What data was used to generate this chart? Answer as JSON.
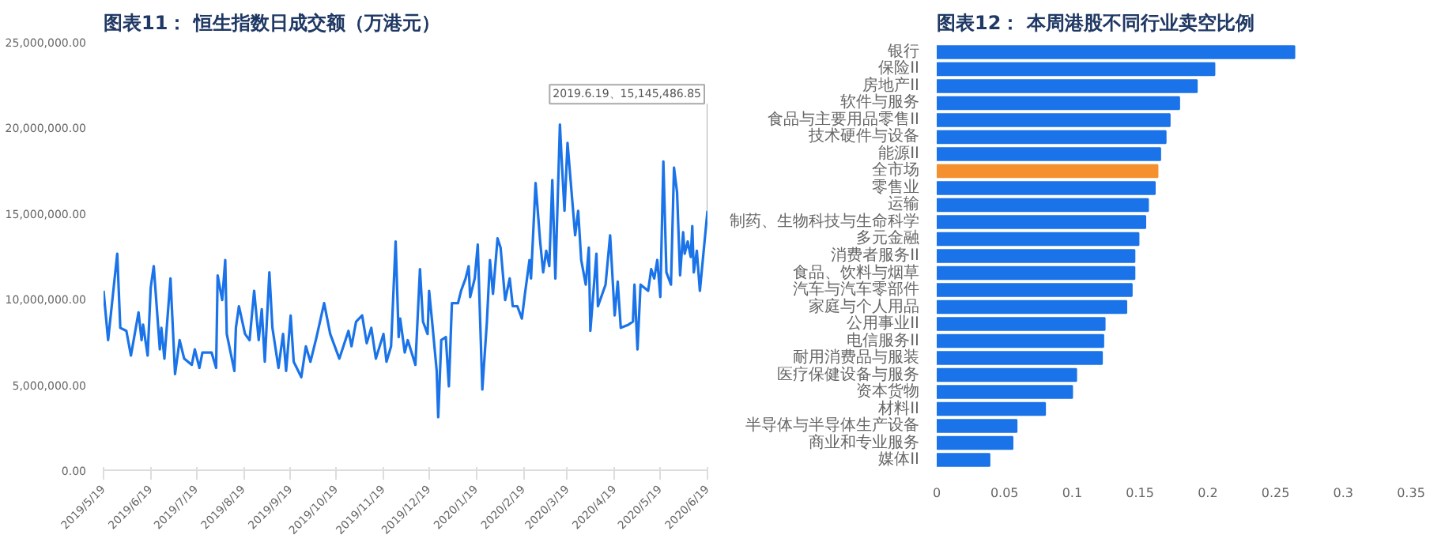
{
  "chart_data": [
    {
      "type": "line",
      "title": "图表11：  恒生指数日成交额（万港元）",
      "x": [
        "2019-05-19",
        "2019-05-22",
        "2019-05-28",
        "2019-05-30",
        "2019-06-03",
        "2019-06-06",
        "2019-06-11",
        "2019-06-13",
        "2019-06-14",
        "2019-06-17",
        "2019-06-19",
        "2019-06-21",
        "2019-06-25",
        "2019-06-26",
        "2019-06-28",
        "2019-07-02",
        "2019-07-05",
        "2019-07-08",
        "2019-07-11",
        "2019-07-16",
        "2019-07-18",
        "2019-07-21",
        "2019-07-23",
        "2019-07-29",
        "2019-08-01",
        "2019-08-02",
        "2019-08-05",
        "2019-08-07",
        "2019-08-08",
        "2019-08-13",
        "2019-08-14",
        "2019-08-16",
        "2019-08-20",
        "2019-08-23",
        "2019-08-26",
        "2019-08-29",
        "2019-08-31",
        "2019-09-02",
        "2019-09-05",
        "2019-09-07",
        "2019-09-11",
        "2019-09-14",
        "2019-09-16",
        "2019-09-19",
        "2019-09-21",
        "2019-09-26",
        "2019-09-29",
        "2019-10-02",
        "2019-10-06",
        "2019-10-11",
        "2019-10-15",
        "2019-10-21",
        "2019-10-27",
        "2019-10-29",
        "2019-11-01",
        "2019-11-05",
        "2019-11-08",
        "2019-11-11",
        "2019-11-14",
        "2019-11-19",
        "2019-11-21",
        "2019-11-24",
        "2019-11-27",
        "2019-11-29",
        "2019-11-30",
        "2019-12-03",
        "2019-12-05",
        "2019-12-10",
        "2019-12-13",
        "2019-12-15",
        "2019-12-18",
        "2019-12-19",
        "2019-12-21",
        "2019-12-24",
        "2019-12-25",
        "2019-12-27",
        "2019-12-30",
        "2020-01-01",
        "2020-01-03",
        "2020-01-07",
        "2020-01-09",
        "2020-01-12",
        "2020-01-14",
        "2020-01-15",
        "2020-01-18",
        "2020-01-20",
        "2020-01-21",
        "2020-01-23",
        "2020-01-26",
        "2020-01-28",
        "2020-01-30",
        "2020-02-02",
        "2020-02-04",
        "2020-02-07",
        "2020-02-10",
        "2020-02-12",
        "2020-02-15",
        "2020-02-18",
        "2020-02-20",
        "2020-02-23",
        "2020-02-24",
        "2020-02-27",
        "2020-03-01",
        "2020-03-03",
        "2020-03-05",
        "2020-03-07",
        "2020-03-09",
        "2020-03-11",
        "2020-03-14",
        "2020-03-15",
        "2020-03-17",
        "2020-03-19",
        "2020-03-22",
        "2020-03-24",
        "2020-03-26",
        "2020-03-28",
        "2020-03-31",
        "2020-04-02",
        "2020-04-03",
        "2020-04-07",
        "2020-04-08",
        "2020-04-13",
        "2020-04-16",
        "2020-04-19",
        "2020-04-21",
        "2020-04-23",
        "2020-04-28",
        "2020-05-01",
        "2020-05-02",
        "2020-05-04",
        "2020-05-06",
        "2020-05-11",
        "2020-05-13",
        "2020-05-15",
        "2020-05-17",
        "2020-05-19",
        "2020-05-21",
        "2020-05-23",
        "2020-05-26",
        "2020-05-28",
        "2020-05-30",
        "2020-06-01",
        "2020-06-03",
        "2020-06-04",
        "2020-06-06",
        "2020-06-08",
        "2020-06-09",
        "2020-06-10",
        "2020-06-12",
        "2020-06-14",
        "2020-06-19"
      ],
      "series": [
        {
          "color": "#1a73e8",
          "values": [
            10470000,
            7590000,
            12630000,
            8310000,
            8130000,
            6690000,
            9210000,
            7590000,
            8490000,
            6690000,
            10650000,
            11910000,
            7050000,
            8310000,
            6510000,
            11190000,
            5610000,
            7590000,
            6510000,
            6150000,
            7050000,
            5970000,
            6870000,
            6870000,
            5970000,
            11370000,
            9930000,
            12270000,
            7950000,
            5790000,
            8310000,
            9570000,
            7950000,
            7590000,
            10470000,
            7590000,
            9390000,
            6330000,
            11550000,
            8310000,
            5970000,
            7950000,
            5790000,
            9030000,
            6330000,
            5430000,
            7230000,
            6330000,
            7770000,
            9750000,
            7950000,
            6510000,
            8130000,
            7230000,
            8670000,
            9030000,
            7410000,
            8310000,
            6510000,
            7950000,
            6330000,
            7230000,
            13350000,
            7770000,
            8850000,
            6870000,
            7590000,
            6150000,
            11730000,
            8670000,
            7950000,
            10470000,
            8670000,
            5790000,
            3090000,
            7590000,
            7770000,
            4890000,
            9750000,
            9750000,
            10470000,
            11190000,
            11910000,
            10110000,
            11190000,
            13170000,
            10290000,
            4710000,
            8670000,
            12270000,
            10290000,
            13530000,
            12990000,
            9930000,
            11190000,
            9570000,
            9570000,
            8850000,
            10290000,
            12270000,
            11190000,
            16760000,
            13350000,
            11550000,
            12810000,
            11910000,
            16940000,
            11190000,
            20180000,
            18380000,
            15140000,
            19100000,
            15860000,
            13710000,
            15140000,
            12270000,
            10830000,
            12990000,
            8130000,
            12630000,
            9570000,
            10830000,
            13710000,
            9030000,
            11010000,
            8310000,
            8490000,
            8670000,
            10830000,
            7050000,
            10830000,
            10470000,
            11730000,
            11190000,
            12270000,
            10110000,
            18020000,
            11550000,
            10830000,
            17660000,
            16220000,
            11370000,
            13890000,
            12630000,
            13350000,
            12450000,
            14250000,
            11550000,
            12810000,
            10470000,
            15145486.85
          ]
        }
      ],
      "xlim": [
        "2019-05-19",
        "2020-06-19"
      ],
      "xticks": [
        {
          "value": "2019-05-19",
          "label": "2019/5/19"
        },
        {
          "value": "2019-06-19",
          "label": "2019/6/19"
        },
        {
          "value": "2019-07-19",
          "label": "2019/7/19"
        },
        {
          "value": "2019-08-19",
          "label": "2019/8/19"
        },
        {
          "value": "2019-09-19",
          "label": "2019/9/19"
        },
        {
          "value": "2019-10-19",
          "label": "2019/10/19"
        },
        {
          "value": "2019-11-19",
          "label": "2019/11/19"
        },
        {
          "value": "2019-12-19",
          "label": "2019/12/19"
        },
        {
          "value": "2020-01-19",
          "label": "2020/1/19"
        },
        {
          "value": "2020-02-19",
          "label": "2020/2/19"
        },
        {
          "value": "2020-03-19",
          "label": "2020/3/19"
        },
        {
          "value": "2020-04-19",
          "label": "2020/4/19"
        },
        {
          "value": "2020-05-19",
          "label": "2020/5/19"
        },
        {
          "value": "2020-06-19",
          "label": "2020/6/19"
        }
      ],
      "ylim": [
        0,
        25000000
      ],
      "yticks": [
        {
          "value": 0,
          "label": "0.00"
        },
        {
          "value": 5000000,
          "label": "5,000,000.00"
        },
        {
          "value": 10000000,
          "label": "10,000,000.00"
        },
        {
          "value": 15000000,
          "label": "15,000,000.00"
        },
        {
          "value": 20000000,
          "label": "20,000,000.00"
        },
        {
          "value": 25000000,
          "label": "25,000,000.00"
        }
      ],
      "annotations": [
        {
          "text": "2019.6.19、15,145,486.85",
          "x": "2020-06-19",
          "y": 15145486.85
        }
      ],
      "grid": false,
      "marker": "none",
      "line_style": "solid"
    },
    {
      "type": "bar",
      "orientation": "horizontal",
      "title": "图表12：  本周港股不同行业卖空比例",
      "categories": [
        "银行",
        "保险II",
        "房地产II",
        "软件与服务",
        "食品与主要用品零售II",
        "技术硬件与设备",
        "能源II",
        "全市场",
        "零售业",
        "运输",
        "制药、生物科技与生命科学",
        "多元金融",
        "消费者服务II",
        "食品、饮料与烟草",
        "汽车与汽车零部件",
        "家庭与个人用品",
        "公用事业II",
        "电信服务II",
        "耐用消费品与服装",
        "医疗保健设备与服务",
        "资本货物",
        "材料II",
        "半导体与半导体生产设备",
        "商业和专业服务",
        "媒体II"
      ],
      "values": [
        0.264,
        0.205,
        0.192,
        0.179,
        0.172,
        0.169,
        0.165,
        0.163,
        0.161,
        0.156,
        0.154,
        0.149,
        0.146,
        0.146,
        0.144,
        0.14,
        0.124,
        0.123,
        0.122,
        0.103,
        0.1,
        0.08,
        0.059,
        0.056,
        0.039
      ],
      "colors": [
        "#1a73e8",
        "#1a73e8",
        "#1a73e8",
        "#1a73e8",
        "#1a73e8",
        "#1a73e8",
        "#1a73e8",
        "#f5902f",
        "#1a73e8",
        "#1a73e8",
        "#1a73e8",
        "#1a73e8",
        "#1a73e8",
        "#1a73e8",
        "#1a73e8",
        "#1a73e8",
        "#1a73e8",
        "#1a73e8",
        "#1a73e8",
        "#1a73e8",
        "#1a73e8",
        "#1a73e8",
        "#1a73e8",
        "#1a73e8",
        "#1a73e8"
      ],
      "xlim": [
        0,
        0.35
      ],
      "xticks": [
        0,
        0.05,
        0.1,
        0.15,
        0.2,
        0.25,
        0.3,
        0.35
      ],
      "grid": false
    }
  ]
}
